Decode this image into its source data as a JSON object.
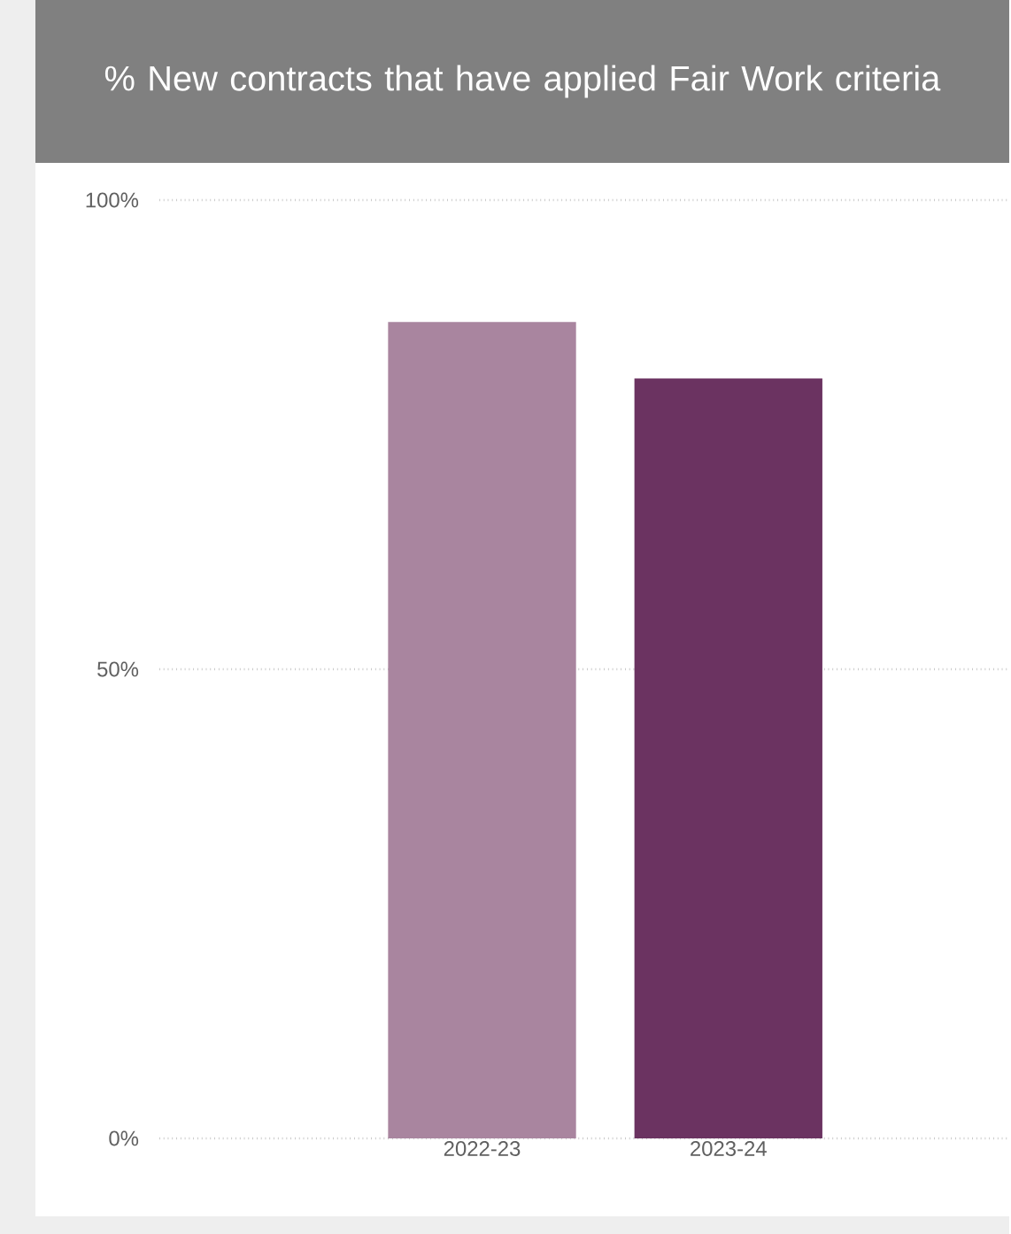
{
  "chart_data": {
    "type": "bar",
    "title": "% New contracts that have applied Fair Work criteria",
    "categories": [
      "2022-23",
      "2023-24"
    ],
    "values": [
      87,
      81
    ],
    "colors": [
      "#a9859f",
      "#6b3361"
    ],
    "ylim": [
      0,
      100
    ],
    "yticks": [
      {
        "value": 0,
        "label": "0%"
      },
      {
        "value": 50,
        "label": "50%"
      },
      {
        "value": 100,
        "label": "100%"
      }
    ],
    "grid": "y"
  }
}
